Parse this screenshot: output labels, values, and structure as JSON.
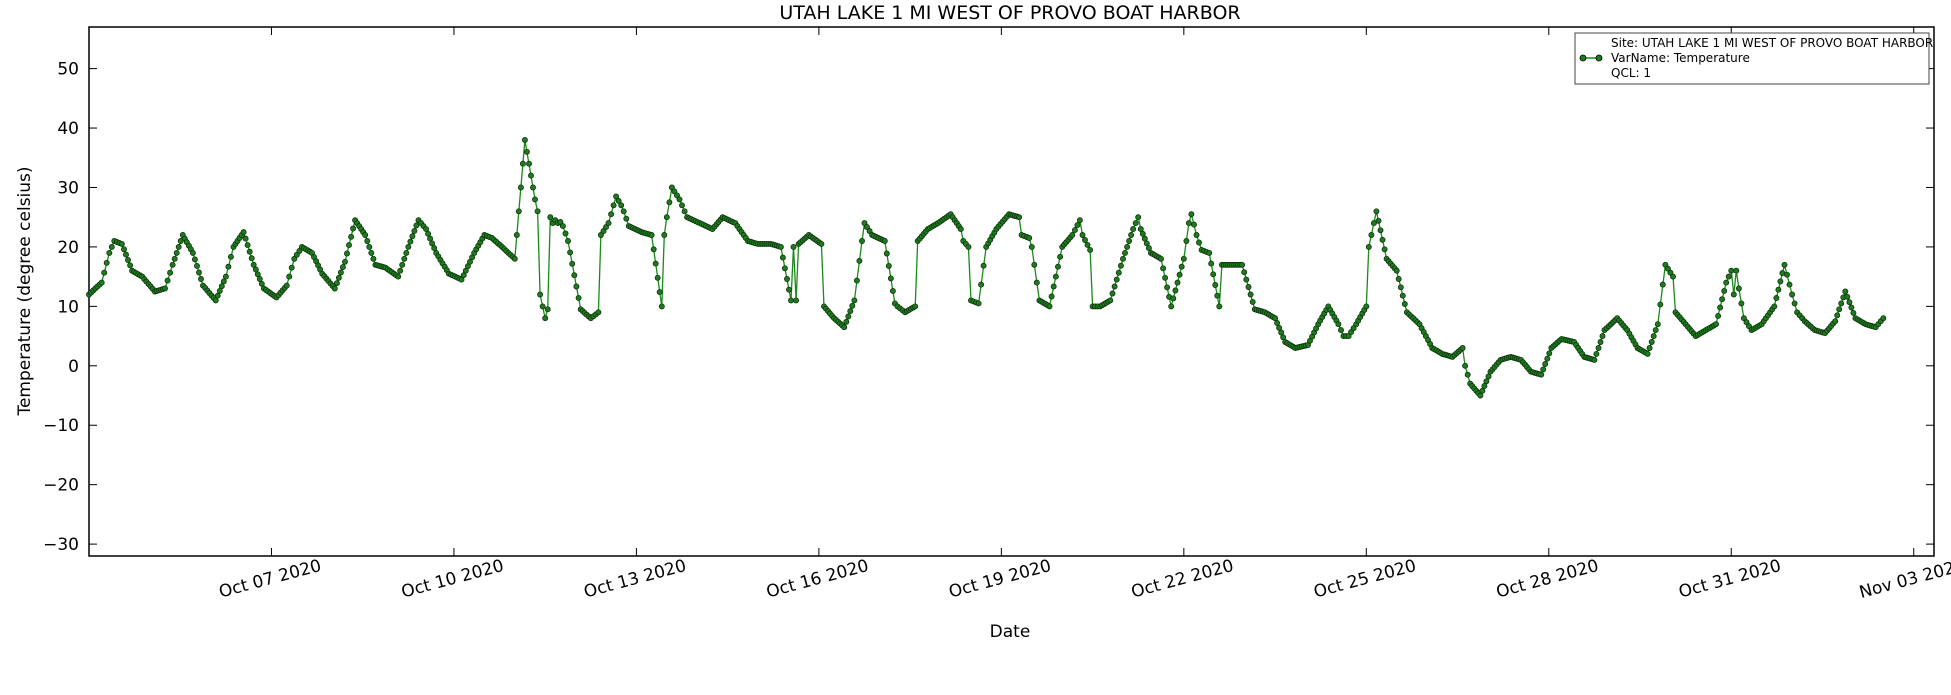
{
  "chart_data": {
    "type": "line",
    "title": "UTAH LAKE 1 MI WEST OF PROVO BOAT HARBOR",
    "xlabel": "Date",
    "ylabel": "Temperature (degree celsius)",
    "xlim": [
      "2020-10-04T00:00",
      "2020-11-03T08:00"
    ],
    "ylim": [
      -32,
      57
    ],
    "x_ticks": [
      "2020-10-07",
      "2020-10-10",
      "2020-10-13",
      "2020-10-16",
      "2020-10-19",
      "2020-10-22",
      "2020-10-25",
      "2020-10-28",
      "2020-10-31",
      "2020-11-03"
    ],
    "x_tick_labels": [
      "Oct 07 2020",
      "Oct 10 2020",
      "Oct 13 2020",
      "Oct 16 2020",
      "Oct 19 2020",
      "Oct 22 2020",
      "Oct 25 2020",
      "Oct 28 2020",
      "Oct 31 2020",
      "Nov 03 2020"
    ],
    "y_ticks": [
      -30,
      -20,
      -10,
      0,
      10,
      20,
      30,
      40,
      50
    ],
    "y_tick_labels": [
      "−30",
      "−20",
      "−10",
      "0",
      "10",
      "20",
      "30",
      "40",
      "50"
    ],
    "grid": false,
    "legend_position": "top-right",
    "legend_lines": [
      "Site: UTAH LAKE 1 MI WEST OF PROVO BOAT HARBOR",
      "VarName: Temperature",
      "QCL: 1"
    ],
    "series": [
      {
        "color": "#1a8a1a",
        "marker_color": "#1d7a1d",
        "x": [
          "2020-10-04T00:00",
          "2020-10-04T05:00",
          "2020-10-04T08:00",
          "2020-10-04T10:00",
          "2020-10-04T13:00",
          "2020-10-04T17:00",
          "2020-10-04T21:00",
          "2020-10-05T02:00",
          "2020-10-05T06:00",
          "2020-10-05T09:00",
          "2020-10-05T13:00",
          "2020-10-05T17:00",
          "2020-10-05T21:00",
          "2020-10-06T02:00",
          "2020-10-06T06:00",
          "2020-10-06T09:00",
          "2020-10-06T13:00",
          "2020-10-06T17:00",
          "2020-10-06T21:00",
          "2020-10-07T02:00",
          "2020-10-07T06:00",
          "2020-10-07T09:00",
          "2020-10-07T12:00",
          "2020-10-07T16:00",
          "2020-10-07T20:00",
          "2020-10-08T01:00",
          "2020-10-08T05:00",
          "2020-10-08T09:00",
          "2020-10-08T13:00",
          "2020-10-08T17:00",
          "2020-10-08T21:00",
          "2020-10-09T02:00",
          "2020-10-09T06:00",
          "2020-10-09T10:00",
          "2020-10-09T13:00",
          "2020-10-09T17:00",
          "2020-10-09T22:00",
          "2020-10-10T03:00",
          "2020-10-10T08:00",
          "2020-10-10T12:00",
          "2020-10-10T15:00",
          "2020-10-10T19:00",
          "2020-10-11T00:00",
          "2020-10-11T04:00",
          "2020-10-11T08:00",
          "2020-10-11T09:00",
          "2020-10-11T10:00",
          "2020-10-11T11:00",
          "2020-10-11T12:00",
          "2020-10-11T13:00",
          "2020-10-11T14:00",
          "2020-10-11T15:00",
          "2020-10-11T16:00",
          "2020-10-11T17:00",
          "2020-10-11T18:00",
          "2020-10-11T19:00",
          "2020-10-11T21:00",
          "2020-10-12T02:00",
          "2020-10-12T06:00",
          "2020-10-12T09:00",
          "2020-10-12T10:00",
          "2020-10-12T13:00",
          "2020-10-12T16:00",
          "2020-10-12T18:00",
          "2020-10-12T19:00",
          "2020-10-12T21:00",
          "2020-10-13T02:00",
          "2020-10-13T06:00",
          "2020-10-13T10:00",
          "2020-10-13T11:00",
          "2020-10-13T12:00",
          "2020-10-13T14:00",
          "2020-10-13T17:00",
          "2020-10-13T20:00",
          "2020-10-14T01:00",
          "2020-10-14T06:00",
          "2020-10-14T10:00",
          "2020-10-14T15:00",
          "2020-10-14T20:00",
          "2020-10-15T00:00",
          "2020-10-15T05:00",
          "2020-10-15T09:00",
          "2020-10-15T13:00",
          "2020-10-15T14:00",
          "2020-10-15T15:00",
          "2020-10-15T16:00",
          "2020-10-15T20:00",
          "2020-10-16T01:00",
          "2020-10-16T02:00",
          "2020-10-16T06:00",
          "2020-10-16T10:00",
          "2020-10-16T14:00",
          "2020-10-16T17:00",
          "2020-10-16T18:00",
          "2020-10-16T21:00",
          "2020-10-17T02:00",
          "2020-10-17T06:00",
          "2020-10-17T07:00",
          "2020-10-17T10:00",
          "2020-10-17T14:00",
          "2020-10-17T15:00",
          "2020-10-17T19:00",
          "2020-10-17T23:00",
          "2020-10-18T04:00",
          "2020-10-18T08:00",
          "2020-10-18T09:00",
          "2020-10-18T11:00",
          "2020-10-18T12:00",
          "2020-10-18T15:00",
          "2020-10-18T18:00",
          "2020-10-18T22:00",
          "2020-10-19T03:00",
          "2020-10-19T07:00",
          "2020-10-19T08:00",
          "2020-10-19T11:00",
          "2020-10-19T12:00",
          "2020-10-19T15:00",
          "2020-10-19T19:00",
          "2020-10-20T00:00",
          "2020-10-20T04:00",
          "2020-10-20T07:00",
          "2020-10-20T08:00",
          "2020-10-20T11:00",
          "2020-10-20T12:00",
          "2020-10-20T15:00",
          "2020-10-20T19:00",
          "2020-10-21T00:00",
          "2020-10-21T04:00",
          "2020-10-21T06:00",
          "2020-10-21T07:00",
          "2020-10-21T11:00",
          "2020-10-21T15:00",
          "2020-10-21T19:00",
          "2020-10-22T00:00",
          "2020-10-22T02:00",
          "2020-10-22T03:00",
          "2020-10-22T05:00",
          "2020-10-22T07:00",
          "2020-10-22T10:00",
          "2020-10-22T14:00",
          "2020-10-22T15:00",
          "2020-10-22T19:00",
          "2020-10-22T23:00",
          "2020-10-23T04:00",
          "2020-10-23T08:00",
          "2020-10-23T12:00",
          "2020-10-23T16:00",
          "2020-10-23T20:00",
          "2020-10-24T01:00",
          "2020-10-24T05:00",
          "2020-10-24T09:00",
          "2020-10-24T13:00",
          "2020-10-24T15:00",
          "2020-10-24T17:00",
          "2020-10-24T20:00",
          "2020-10-25T00:00",
          "2020-10-25T01:00",
          "2020-10-25T04:00",
          "2020-10-25T08:00",
          "2020-10-25T12:00",
          "2020-10-25T16:00",
          "2020-10-25T21:00",
          "2020-10-26T02:00",
          "2020-10-26T06:00",
          "2020-10-26T10:00",
          "2020-10-26T14:00",
          "2020-10-26T15:00",
          "2020-10-26T17:00",
          "2020-10-26T21:00",
          "2020-10-27T01:00",
          "2020-10-27T05:00",
          "2020-10-27T09:00",
          "2020-10-27T13:00",
          "2020-10-27T17:00",
          "2020-10-27T21:00",
          "2020-10-28T01:00",
          "2020-10-28T05:00",
          "2020-10-28T10:00",
          "2020-10-28T14:00",
          "2020-10-28T18:00",
          "2020-10-28T22:00",
          "2020-10-29T03:00",
          "2020-10-29T07:00",
          "2020-10-29T11:00",
          "2020-10-29T15:00",
          "2020-10-29T19:00",
          "2020-10-29T22:00",
          "2020-10-30T01:00",
          "2020-10-30T02:00",
          "2020-10-30T06:00",
          "2020-10-30T10:00",
          "2020-10-30T14:00",
          "2020-10-30T18:00",
          "2020-10-30T22:00",
          "2020-10-31T00:00",
          "2020-10-31T01:00",
          "2020-10-31T02:00",
          "2020-10-31T03:00",
          "2020-10-31T05:00",
          "2020-10-31T08:00",
          "2020-10-31T12:00",
          "2020-10-31T17:00",
          "2020-10-31T21:00",
          "2020-11-01T00:00",
          "2020-11-01T02:00",
          "2020-11-01T05:00",
          "2020-11-01T09:00",
          "2020-11-01T13:00",
          "2020-11-01T17:00",
          "2020-11-01T21:00",
          "2020-11-02T01:00",
          "2020-11-02T05:00",
          "2020-11-02T09:00",
          "2020-11-02T12:00"
        ],
        "y": [
          12,
          14,
          19,
          21,
          20.5,
          16,
          15,
          12.5,
          13,
          17,
          22,
          19,
          13.5,
          11,
          15,
          20,
          22.5,
          17,
          13,
          11.5,
          13.5,
          18,
          20,
          19,
          15.5,
          13,
          17.5,
          24.5,
          22,
          17,
          16.5,
          15,
          20,
          24.5,
          23,
          19,
          15.5,
          14.5,
          19,
          22,
          21.5,
          20,
          18,
          38,
          28,
          26,
          12,
          10,
          8,
          9.5,
          25,
          24,
          24.5,
          24,
          24.2,
          23.5,
          21,
          9.5,
          8,
          9,
          22,
          24,
          28.5,
          27,
          26,
          23.5,
          22.5,
          22,
          10,
          22,
          25,
          30,
          28,
          25,
          24,
          23,
          25,
          24,
          21,
          20.5,
          20.5,
          20,
          11,
          20,
          11,
          20.5,
          22,
          20.5,
          10,
          8,
          6.5,
          11,
          21,
          24,
          22,
          21,
          10.5,
          10,
          9,
          10,
          21,
          23,
          24,
          25.5,
          23,
          21,
          20,
          11,
          10.5,
          20,
          23,
          25.5,
          25,
          22,
          21.5,
          20,
          11,
          10,
          20,
          22,
          24.5,
          22,
          19.5,
          10,
          10,
          11,
          18,
          23,
          25,
          23,
          19,
          18,
          10,
          18,
          24,
          25.5,
          22,
          19.5,
          19,
          10,
          17,
          17,
          17,
          9.5,
          9,
          8,
          4,
          3,
          3.5,
          7,
          10,
          7,
          5,
          5,
          7,
          10,
          20,
          26,
          18,
          16,
          9,
          7,
          3,
          2,
          1.5,
          3,
          0,
          -3,
          -5,
          -1,
          1,
          1.5,
          1,
          -1,
          -1.5,
          3,
          4.5,
          4,
          1.5,
          1,
          6,
          8,
          6,
          3,
          2,
          7,
          17,
          15,
          9,
          7,
          5,
          6,
          7,
          14,
          16,
          12,
          16,
          13,
          8,
          6,
          7,
          10,
          17,
          12,
          9,
          7.5,
          6,
          5.5,
          7.5,
          12.5,
          8,
          7,
          6.5,
          8
        ]
      }
    ]
  }
}
